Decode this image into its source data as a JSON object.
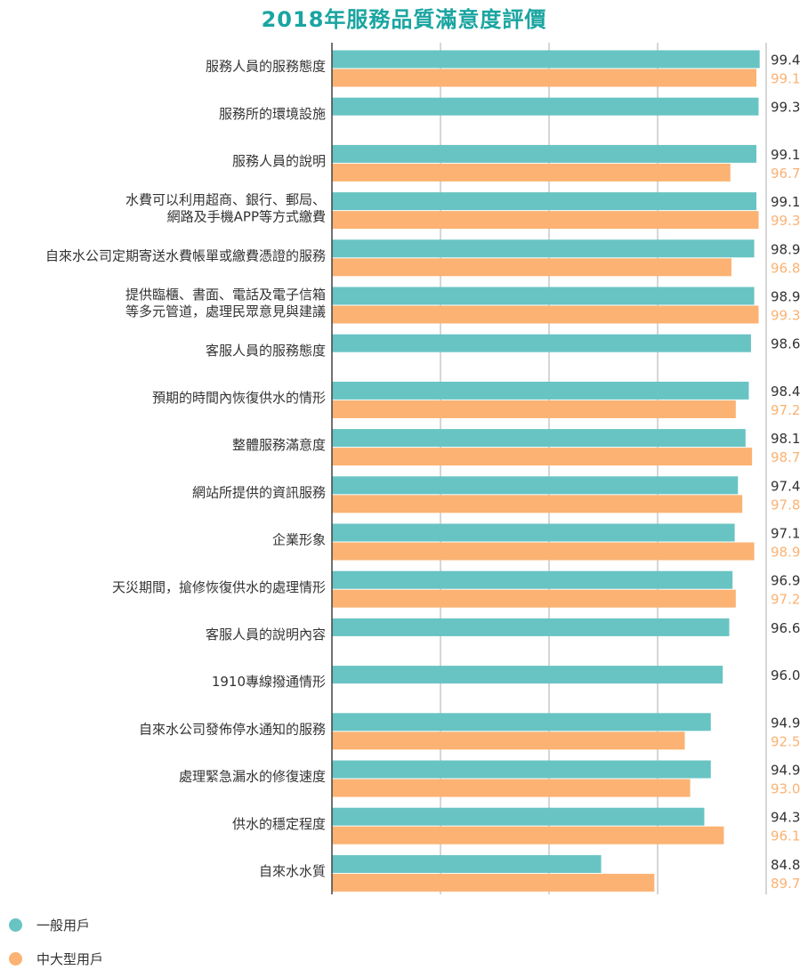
{
  "title": "2018年服務品質滿意度評價",
  "colors": {
    "general": "#68c4c3",
    "large": "#fbb273",
    "title": "#1aa5a1",
    "general_label": "#333333",
    "large_label": "#fbb273"
  },
  "legend": [
    {
      "name": "一般用戶",
      "color": "#68c4c3"
    },
    {
      "name": "中大型用戶",
      "color": "#fbb273"
    }
  ],
  "chart_data": {
    "type": "bar",
    "orientation": "horizontal",
    "title": "2018年服務品質滿意度評價",
    "xlim": [
      60,
      100
    ],
    "grid": true,
    "legend_position": "bottom-left",
    "categories": [
      [
        "服務人員的服務態度"
      ],
      [
        "服務所的環境設施"
      ],
      [
        "服務人員的說明"
      ],
      [
        "水費可以利用超商、銀行、郵局、",
        "網路及手機APP等方式繳費"
      ],
      [
        "自來水公司定期寄送水費帳單或繳費憑證的服務"
      ],
      [
        "提供臨櫃、書面、電話及電子信箱",
        "等多元管道，處理民眾意見與建議"
      ],
      [
        "客服人員的服務態度"
      ],
      [
        "預期的時間內恢復供水的情形"
      ],
      [
        "整體服務滿意度"
      ],
      [
        "網站所提供的資訊服務"
      ],
      [
        "企業形象"
      ],
      [
        "天災期間，搶修恢復供水的處理情形"
      ],
      [
        "客服人員的說明內容"
      ],
      [
        "1910專線撥通情形"
      ],
      [
        "自來水公司發佈停水通知的服務"
      ],
      [
        "處理緊急漏水的修復速度"
      ],
      [
        "供水的穩定程度"
      ],
      [
        "自來水水質"
      ]
    ],
    "series": [
      {
        "name": "一般用戶",
        "color": "#68c4c3",
        "values": [
          99.4,
          99.3,
          99.1,
          99.1,
          98.9,
          98.9,
          98.6,
          98.4,
          98.1,
          97.4,
          97.1,
          96.9,
          96.6,
          96.0,
          94.9,
          94.9,
          94.3,
          84.8
        ],
        "labels": [
          "99.4",
          "99.3",
          "99.1",
          "99.1",
          "98.9",
          "98.9",
          "98.6",
          "98.4",
          "98.1",
          "97.4",
          "97.1",
          "96.9",
          "96.6",
          "96.0",
          "94.9",
          "94.9",
          "94.3",
          "84.8"
        ]
      },
      {
        "name": "中大型用戶",
        "color": "#fbb273",
        "values": [
          99.1,
          null,
          96.7,
          99.3,
          96.8,
          99.3,
          null,
          97.2,
          98.7,
          97.8,
          98.9,
          97.2,
          null,
          null,
          92.5,
          93.0,
          96.1,
          89.7
        ],
        "labels": [
          "99.1",
          null,
          "96.7",
          "99.3",
          "96.8",
          "99.3",
          null,
          "97.2",
          "98.7",
          "97.8",
          "98.9",
          "97.2",
          null,
          null,
          "92.5",
          "93.0",
          "96.1",
          "89.7"
        ]
      }
    ]
  }
}
